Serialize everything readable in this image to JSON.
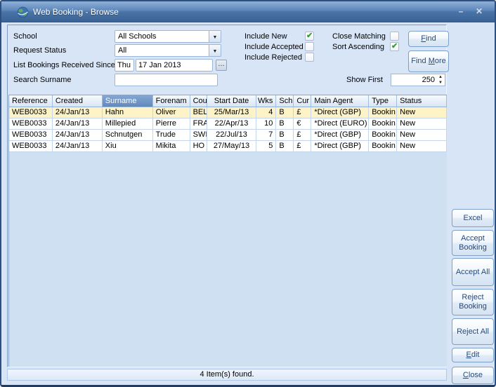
{
  "window": {
    "title": "Web Booking - Browse",
    "minimize_glyph": "–",
    "close_glyph": "✕"
  },
  "form": {
    "school_label": "School",
    "school_value": "All Schools",
    "request_status_label": "Request Status",
    "request_status_value": "All",
    "received_since_label": "List Bookings Received Since",
    "received_since_day": "Thu",
    "received_since_date": "17 Jan 2013",
    "date_picker_label": "...",
    "search_surname_label": "Search Surname",
    "search_surname_value": "",
    "checkboxes": [
      {
        "label": "Include New",
        "checked": true
      },
      {
        "label": "Include Accepted",
        "checked": false
      },
      {
        "label": "Include Rejected",
        "checked": false
      },
      {
        "label": "Close Matching",
        "checked": false
      },
      {
        "label": "Sort Ascending",
        "checked": true
      }
    ],
    "show_first_label": "Show First",
    "show_first_value": "250",
    "spinner_up_glyph": "▲",
    "spinner_down_glyph": "▼",
    "dropdown_arrow_glyph": "▼"
  },
  "buttons": {
    "find": {
      "pre": "",
      "u": "F",
      "post": "ind"
    },
    "find_more": {
      "pre": "Find ",
      "u": "M",
      "post": "ore"
    },
    "excel": "Excel",
    "accept_booking": "Accept Booking",
    "accept_all": "Accept All",
    "reject_booking": "Reject Booking",
    "reject_all": "Reject All",
    "edit": {
      "pre": "",
      "u": "E",
      "post": "dit"
    },
    "close": {
      "pre": "",
      "u": "C",
      "post": "lose"
    }
  },
  "table": {
    "headers": [
      "Reference",
      "Created",
      "Surname",
      "Forenam",
      "Cou",
      "Start Date",
      "Wks",
      "Sch",
      "Cur",
      "Main Agent",
      "Type",
      "Status"
    ],
    "sorted_column": "Surname",
    "selected_row_index": 0,
    "rows": [
      [
        "WEB0033",
        "24/Jan/13",
        "Hahn",
        "Oliver",
        "BEL",
        "25/Mar/13",
        "4",
        "B",
        "£",
        "*Direct (GBP)",
        "Bookin",
        "New"
      ],
      [
        "WEB0033",
        "24/Jan/13",
        "Millepied",
        "Pierre",
        "FRA",
        "22/Apr/13",
        "10",
        "B",
        "€",
        "*Direct (EURO)",
        "Bookin",
        "New"
      ],
      [
        "WEB0033",
        "24/Jan/13",
        "Schnutgen",
        "Trude",
        "SWI",
        "22/Jul/13",
        "7",
        "B",
        "£",
        "*Direct (GBP)",
        "Bookin",
        "New"
      ],
      [
        "WEB0033",
        "24/Jan/13",
        "Xiu",
        "Mikita",
        "HO",
        "27/May/13",
        "5",
        "B",
        "£",
        "*Direct (GBP)",
        "Bookin",
        "New"
      ]
    ]
  },
  "status_bar": {
    "text": "4 Item(s) found."
  },
  "colors": {
    "titlebar_accent": "#4a74a8",
    "selected_row": "#fdf3c6",
    "sorted_header": "#6289bd",
    "check_green": "#2ea02e",
    "button_text": "#274a7b"
  }
}
